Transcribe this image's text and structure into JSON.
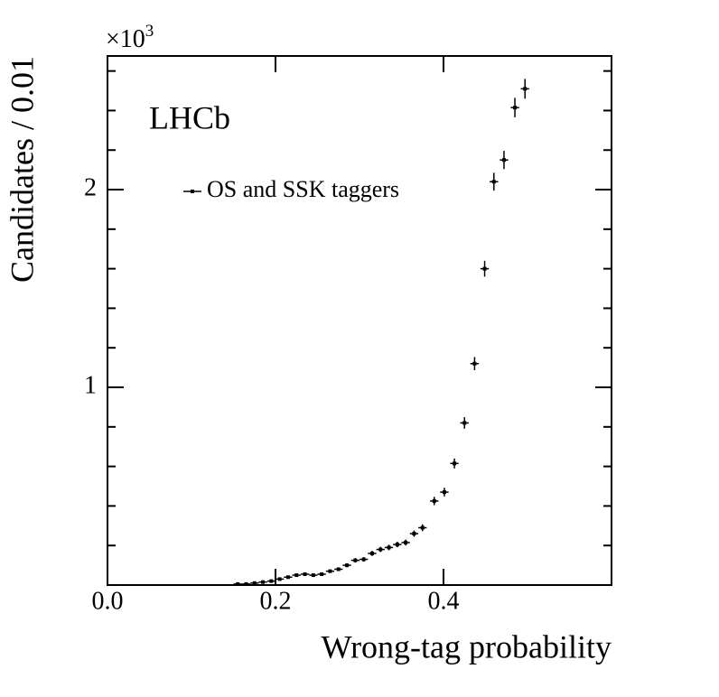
{
  "chart_data": {
    "type": "scatter",
    "experiment_label": "LHCb",
    "xlabel": "Wrong-tag probability",
    "ylabel": "Candidates / 0.01",
    "y_scale_base": "×10",
    "y_scale_exponent": "3",
    "xlim": [
      0,
      0.6
    ],
    "ylim": [
      0,
      2.676
    ],
    "xticks": [
      {
        "value": 0,
        "label": "0.0"
      },
      0.2,
      0.4
    ],
    "yticks": [
      1,
      2
    ],
    "yminor": [
      0.2,
      0.4,
      0.6,
      0.8,
      1.2,
      1.4,
      1.6,
      1.8,
      2.2,
      2.4,
      2.6
    ],
    "legend": "upper left",
    "series": [
      {
        "name": "OS and SSK taggers",
        "color": "#000000",
        "xerr": 0.005,
        "x": [
          0.155,
          0.165,
          0.175,
          0.185,
          0.195,
          0.205,
          0.215,
          0.225,
          0.235,
          0.245,
          0.255,
          0.265,
          0.275,
          0.285,
          0.295,
          0.305,
          0.315,
          0.325,
          0.335,
          0.345,
          0.355,
          0.365,
          0.375,
          0.389,
          0.401,
          0.413,
          0.425,
          0.437,
          0.449,
          0.46,
          0.472,
          0.485,
          0.497
        ],
        "values": [
          0.005,
          0.005,
          0.01,
          0.015,
          0.02,
          0.03,
          0.04,
          0.05,
          0.055,
          0.05,
          0.055,
          0.07,
          0.08,
          0.1,
          0.125,
          0.13,
          0.16,
          0.18,
          0.19,
          0.205,
          0.215,
          0.26,
          0.29,
          0.425,
          0.47,
          0.615,
          0.82,
          1.12,
          1.6,
          2.04,
          2.15,
          2.415,
          2.51
        ],
        "errors": [
          0.002,
          0.002,
          0.003,
          0.004,
          0.004,
          0.005,
          0.006,
          0.007,
          0.007,
          0.007,
          0.007,
          0.008,
          0.009,
          0.01,
          0.011,
          0.011,
          0.013,
          0.013,
          0.014,
          0.014,
          0.015,
          0.016,
          0.017,
          0.021,
          0.022,
          0.025,
          0.029,
          0.033,
          0.04,
          0.045,
          0.046,
          0.049,
          0.05
        ]
      }
    ]
  }
}
